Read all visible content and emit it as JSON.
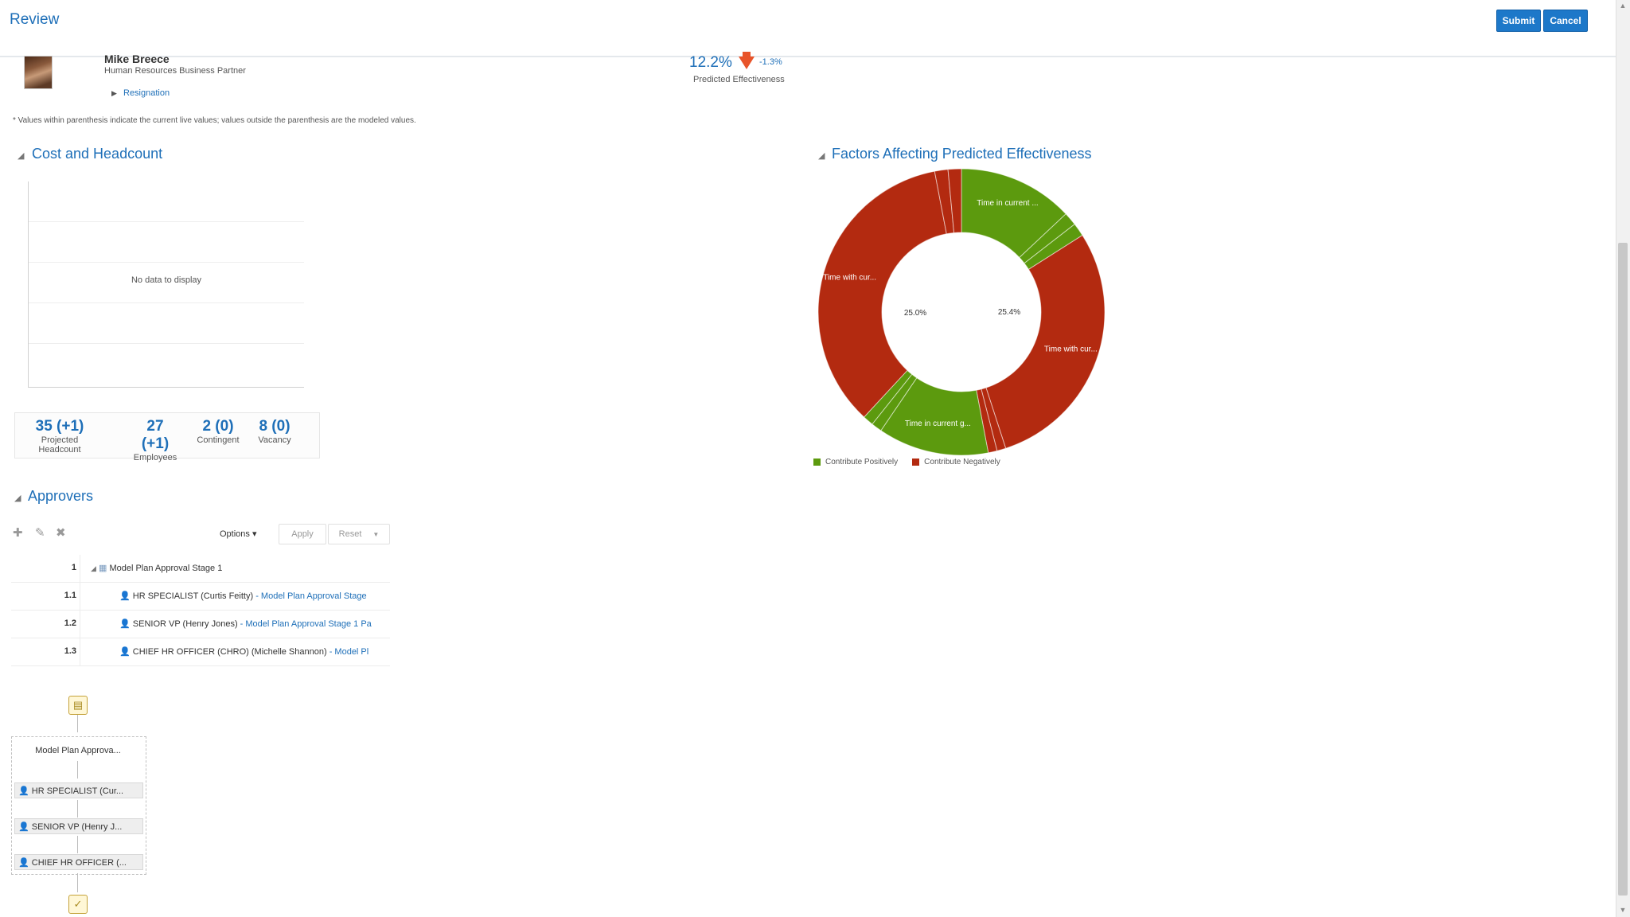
{
  "header": {
    "title": "Review",
    "submit_label": "Submit",
    "cancel_label": "Cancel"
  },
  "profile": {
    "name": "Mike Breece",
    "role": "Human Resources Business Partner",
    "resignation_label": "Resignation",
    "predicted_value": "12.2%",
    "predicted_delta": "-1.3%",
    "predicted_label": "Predicted Effectiveness"
  },
  "footnote": "* Values within parenthesis indicate the current live values; values outside the parenthesis are the modeled values.",
  "cost_section": {
    "title": "Cost and Headcount",
    "no_data": "No data to display"
  },
  "metrics": [
    {
      "value": "35 (+1)",
      "label": "Projected Headcount"
    },
    {
      "value": "27 (+1)",
      "label": "Employees"
    },
    {
      "value": "2 (0)",
      "label": "Contingent"
    },
    {
      "value": "8 (0)",
      "label": "Vacancy"
    }
  ],
  "factors_section": {
    "title": "Factors Affecting Predicted Effectiveness",
    "legend_positive": "Contribute Positively",
    "legend_negative": "Contribute Negatively",
    "center_left": "25.0%",
    "center_right": "25.4%"
  },
  "colors": {
    "positive": "#5c9a0e",
    "negative": "#b32a10",
    "accent": "#1e6fb8"
  },
  "chart_data": {
    "type": "pie",
    "title": "Factors Affecting Predicted Effectiveness",
    "slices": [
      {
        "label": "Time in current ...",
        "group": "Contribute Positively",
        "value": 13.0
      },
      {
        "label": "",
        "group": "Contribute Positively",
        "value": 1.5
      },
      {
        "label": "",
        "group": "Contribute Positively",
        "value": 1.5
      },
      {
        "label": "Time with cur...",
        "group": "Contribute Negatively",
        "value": 29.0
      },
      {
        "label": "",
        "group": "Contribute Negatively",
        "value": 1.0
      },
      {
        "label": "",
        "group": "Contribute Negatively",
        "value": 1.0
      },
      {
        "label": "Time in current g...",
        "group": "Contribute Positively",
        "value": 12.5
      },
      {
        "label": "",
        "group": "Contribute Positively",
        "value": 1.2
      },
      {
        "label": "",
        "group": "Contribute Positively",
        "value": 1.2
      },
      {
        "label": "Time with cur...",
        "group": "Contribute Negatively",
        "value": 35.1
      },
      {
        "label": "",
        "group": "Contribute Negatively",
        "value": 1.5
      },
      {
        "label": "",
        "group": "Contribute Negatively",
        "value": 1.5
      }
    ],
    "legend": [
      "Contribute Positively",
      "Contribute Negatively"
    ],
    "legend_position": "bottom"
  },
  "approvers": {
    "title": "Approvers",
    "options_label": "Options ▾",
    "apply_label": "Apply",
    "reset_label": "Reset",
    "rows": [
      {
        "num": "1",
        "text": "Model Plan Approval Stage 1",
        "stage": ""
      },
      {
        "num": "1.1",
        "text": "HR SPECIALIST (Curtis Feitty)",
        "stage": " - Model Plan Approval Stage"
      },
      {
        "num": "1.2",
        "text": "SENIOR VP (Henry Jones)",
        "stage": " - Model Plan Approval Stage 1 Pa"
      },
      {
        "num": "1.3",
        "text": "CHIEF HR OFFICER (CHRO) (Michelle Shannon)",
        "stage": " - Model Pl"
      }
    ],
    "flow_stage": "Model Plan Approva...",
    "flow_items": [
      "HR SPECIALIST (Cur...",
      "SENIOR VP (Henry J...",
      "CHIEF HR OFFICER (..."
    ]
  }
}
